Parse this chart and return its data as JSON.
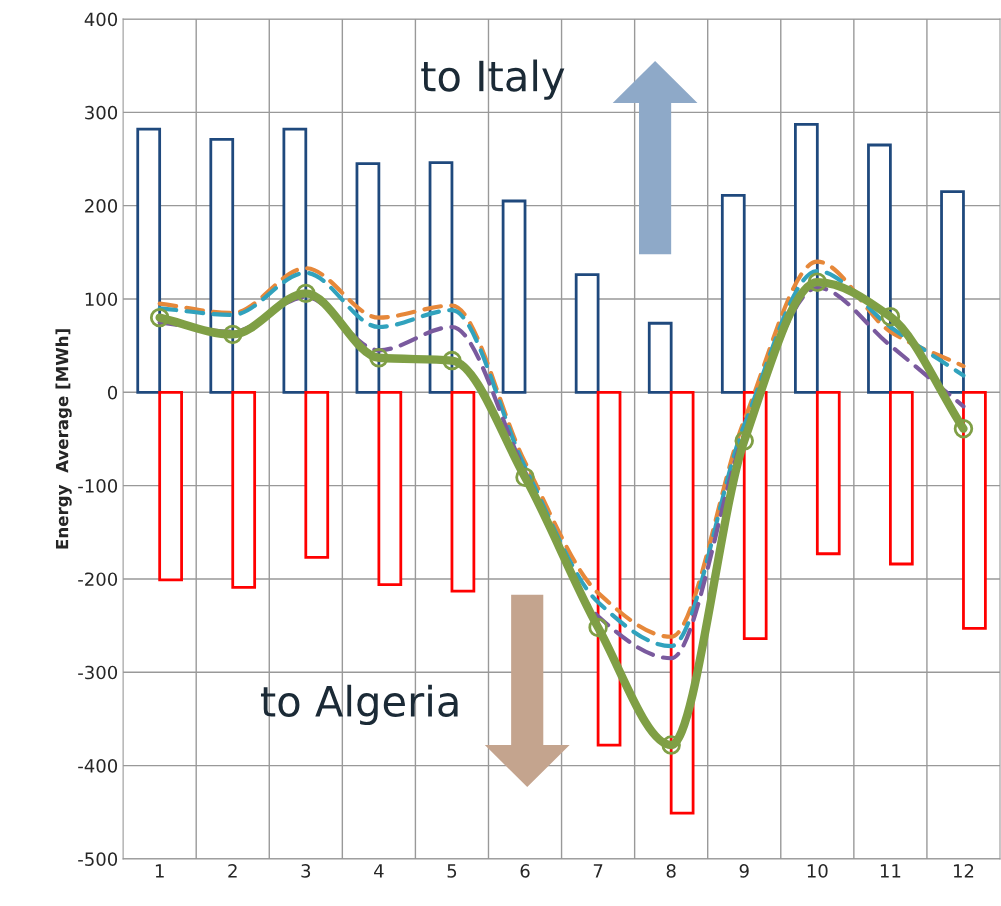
{
  "chart_data": {
    "type": "bar",
    "ylabel": "Energy  Average [MWh]",
    "categories": [
      "1",
      "2",
      "3",
      "4",
      "5",
      "6",
      "7",
      "8",
      "9",
      "10",
      "11",
      "12"
    ],
    "series": [
      {
        "color": "#1f497d",
        "values": [
          282,
          271,
          282,
          245,
          246,
          205,
          126,
          74,
          211,
          287,
          265,
          215
        ]
      },
      {
        "color": "#ff0000",
        "values": [
          -201,
          -209,
          -177,
          -206,
          -213,
          null,
          -378,
          -451,
          -264,
          -173,
          -184,
          -253
        ]
      },
      {
        "type": "line",
        "color": "#e6883a",
        "line_style": "dashed",
        "marker": "none",
        "values": [
          95,
          85,
          133,
          80,
          93,
          -75,
          -215,
          -262,
          -30,
          140,
          65,
          28
        ]
      },
      {
        "type": "line",
        "color": "#31a2bd",
        "line_style": "dashed",
        "marker": "none",
        "values": [
          90,
          83,
          128,
          70,
          88,
          -80,
          -225,
          -272,
          -35,
          130,
          70,
          18
        ]
      },
      {
        "type": "line",
        "color": "#7a5a9e",
        "line_style": "dashed",
        "marker": "none",
        "values": [
          75,
          65,
          102,
          45,
          70,
          -85,
          -240,
          -285,
          -45,
          112,
          50,
          -15
        ]
      },
      {
        "type": "line",
        "color": "#7f9f45",
        "line_style": "solid",
        "marker": "circle",
        "values": [
          80,
          62,
          106,
          37,
          34,
          -91,
          -252,
          -378,
          -52,
          118,
          81,
          -39
        ]
      }
    ],
    "ylim": [
      -500,
      400
    ],
    "yticks": [
      -500,
      -400,
      -300,
      -200,
      -100,
      0,
      100,
      200,
      300,
      400
    ],
    "grid": true,
    "annotations": [
      "to Italy",
      "to Algeria"
    ]
  }
}
